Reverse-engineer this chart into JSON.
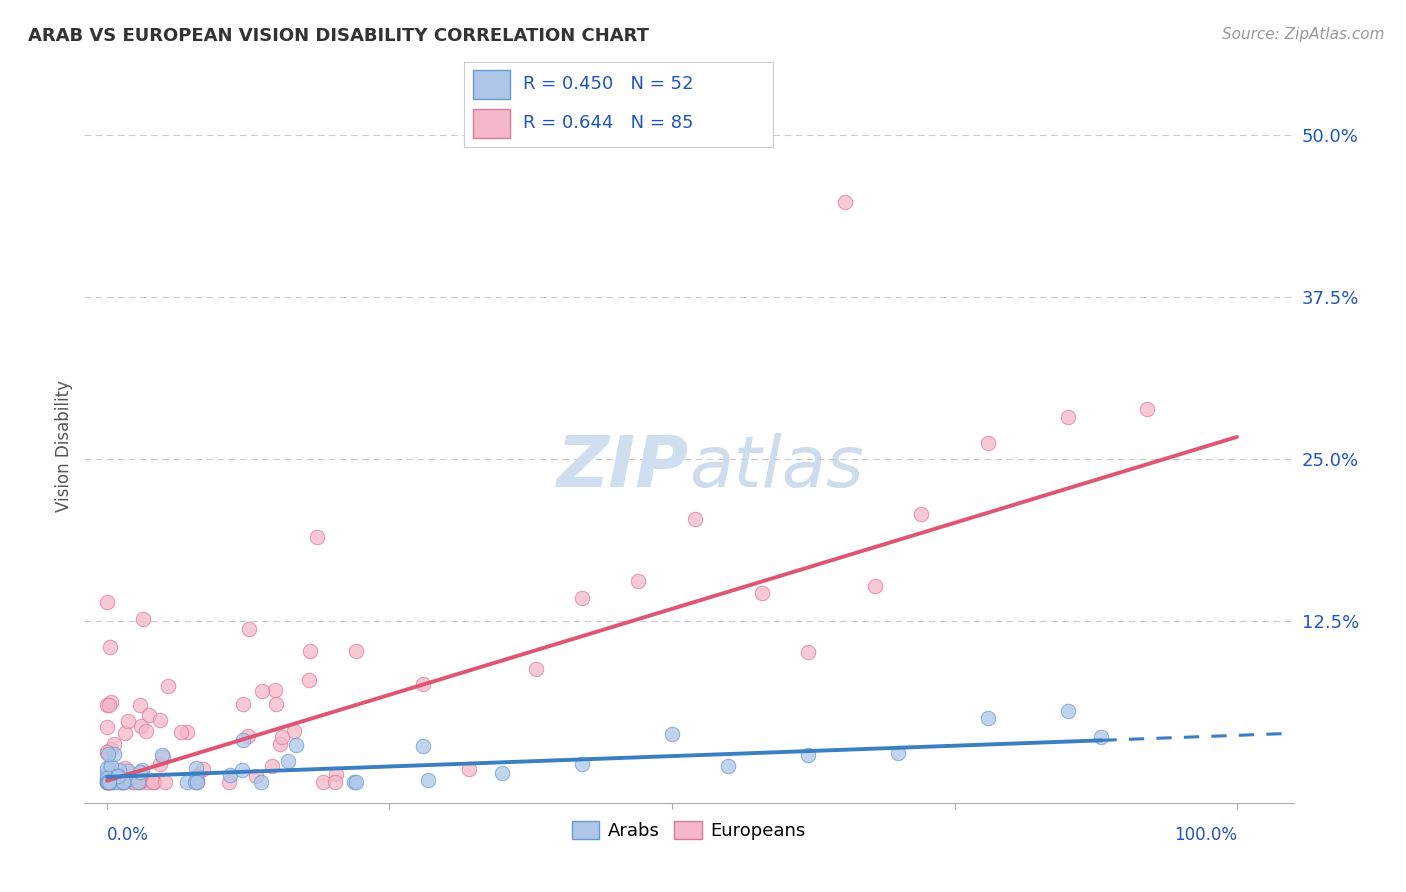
{
  "title": "ARAB VS EUROPEAN VISION DISABILITY CORRELATION CHART",
  "source": "Source: ZipAtlas.com",
  "ylabel": "Vision Disability",
  "ytick_labels": [
    "12.5%",
    "25.0%",
    "37.5%",
    "50.0%"
  ],
  "ytick_values": [
    0.125,
    0.25,
    0.375,
    0.5
  ],
  "xlim": [
    -0.02,
    1.05
  ],
  "ylim": [
    -0.015,
    0.535
  ],
  "arab_R": 0.45,
  "arab_N": 52,
  "european_R": 0.644,
  "european_N": 85,
  "arab_color": "#aec6e8",
  "arab_edge_color": "#6699cc",
  "arab_line_color": "#3a7fc1",
  "european_color": "#f4b8c8",
  "european_edge_color": "#dd7799",
  "european_line_color": "#e05575",
  "title_fontsize": 13,
  "legend_R_color": "#2255bb",
  "background_color": "#ffffff",
  "grid_color": "#cccccc",
  "watermark_color": "#d0dff0",
  "arab_line_intercept": 0.005,
  "arab_line_slope": 0.032,
  "arab_line_solid_end": 0.88,
  "european_line_intercept": 0.002,
  "european_line_slope": 0.265
}
